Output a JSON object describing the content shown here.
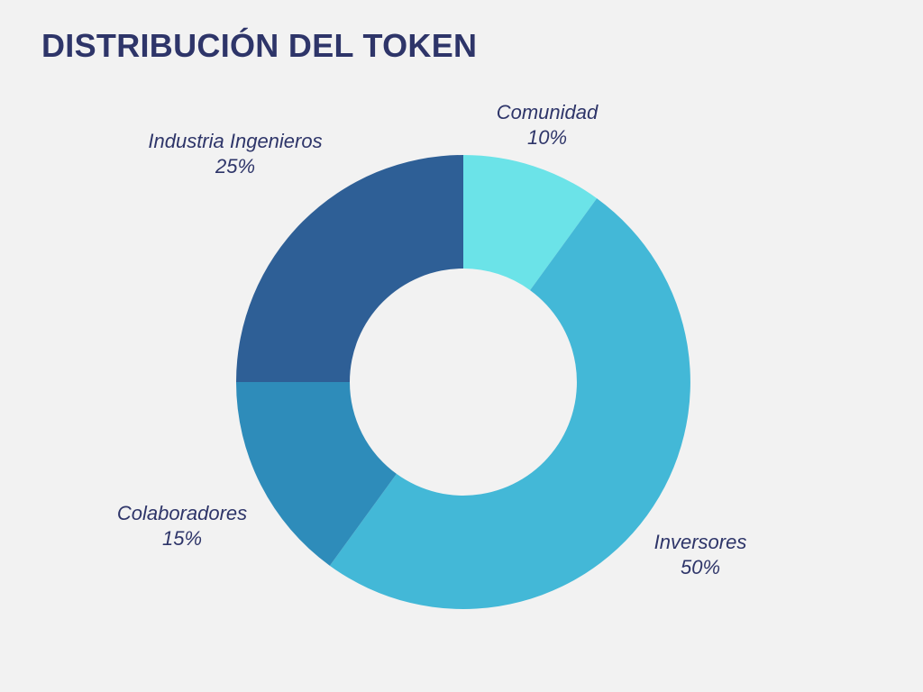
{
  "chart_data": {
    "type": "pie",
    "title": "DISTRIBUCIÓN DEL TOKEN",
    "slices": [
      {
        "label": "Comunidad",
        "value": 10,
        "value_text": "10%",
        "color": "#6be3e8"
      },
      {
        "label": "Inversores",
        "value": 50,
        "value_text": "50%",
        "color": "#43b8d7"
      },
      {
        "label": "Colaboradores",
        "value": 15,
        "value_text": "15%",
        "color": "#2e8cba"
      },
      {
        "label": "Industria Ingenieros",
        "value": 25,
        "value_text": "25%",
        "color": "#2e5f96"
      }
    ]
  }
}
